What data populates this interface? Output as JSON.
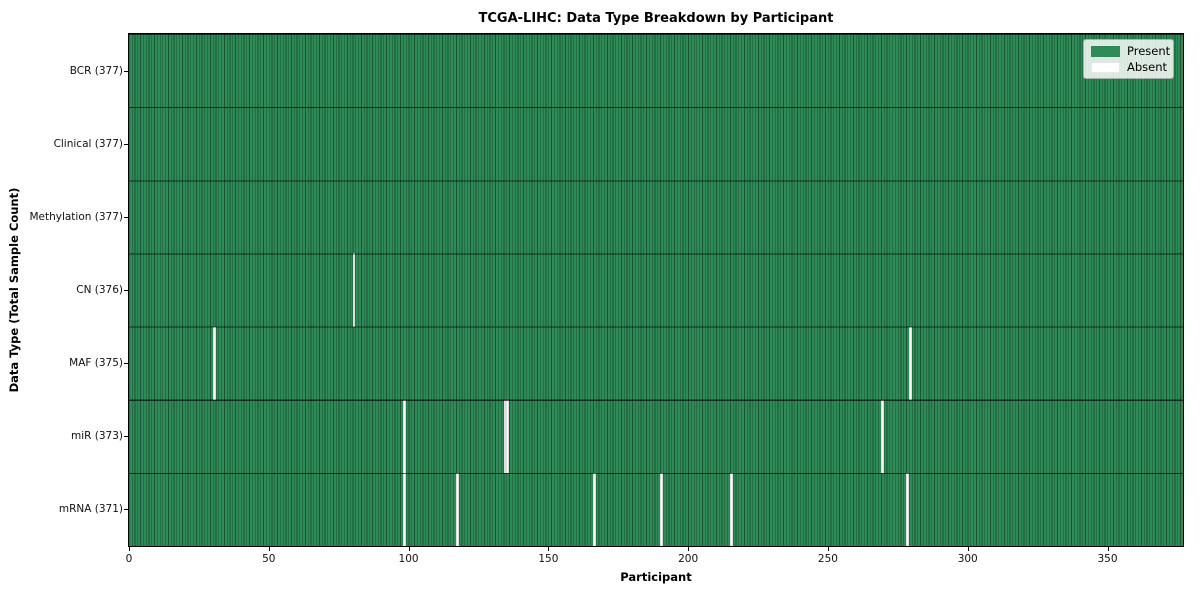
{
  "title": "TCGA-LIHC: Data Type Breakdown by Participant",
  "axes": {
    "xlabel": "Participant",
    "ylabel": "Data Type (Total Sample Count)"
  },
  "legend": {
    "entries": [
      {
        "label": "Present",
        "color": "#2e8b57"
      },
      {
        "label": "Absent",
        "color": "#ffffff"
      }
    ]
  },
  "chart_data": {
    "type": "heatmap",
    "title": "TCGA-LIHC: Data Type Breakdown by Participant",
    "xlabel": "Participant",
    "ylabel": "Data Type (Total Sample Count)",
    "x_ticks": [
      0,
      50,
      100,
      150,
      200,
      250,
      300,
      350
    ],
    "x_range": [
      0,
      377
    ],
    "n_participants": 377,
    "grid": "cell-borders",
    "legend_position": "upper right",
    "colors": {
      "present": "#2e8b57",
      "absent": "#ffffff"
    },
    "rows": [
      {
        "label": "BCR (377)",
        "data_type": "BCR",
        "present_count": 377,
        "absent_participants": []
      },
      {
        "label": "Clinical (377)",
        "data_type": "Clinical",
        "present_count": 377,
        "absent_participants": []
      },
      {
        "label": "Methylation (377)",
        "data_type": "Methylation",
        "present_count": 377,
        "absent_participants": []
      },
      {
        "label": "CN (376)",
        "data_type": "CN",
        "present_count": 376,
        "absent_participants": [
          80
        ]
      },
      {
        "label": "MAF (375)",
        "data_type": "MAF",
        "present_count": 375,
        "absent_participants": [
          30,
          279
        ]
      },
      {
        "label": "miR (373)",
        "data_type": "miR",
        "present_count": 373,
        "absent_participants": [
          98,
          134,
          135,
          269
        ]
      },
      {
        "label": "mRNA (371)",
        "data_type": "mRNA",
        "present_count": 371,
        "absent_participants": [
          98,
          117,
          166,
          190,
          215,
          278
        ]
      }
    ]
  }
}
